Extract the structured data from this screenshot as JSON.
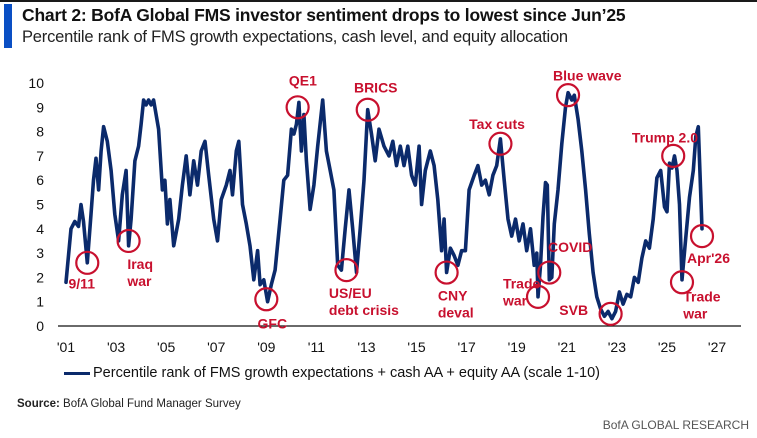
{
  "header": {
    "title": "Chart 2: BofA Global FMS investor sentiment drops to lowest since Jun’25",
    "subtitle": "Percentile rank of FMS growth expectations, cash level, and equity allocation"
  },
  "colors": {
    "accent": "#0a4fc4",
    "series": "#0b2a6b",
    "annotation": "#c8102e",
    "axis": "#111111"
  },
  "footer": {
    "source_label": "Source:",
    "source_text": " BofA Global Fund Manager Survey",
    "brand": "BofA GLOBAL RESEARCH"
  },
  "chart_data": {
    "type": "line",
    "title": "Chart 2: BofA Global FMS investor sentiment drops to lowest since Jun’25",
    "subtitle": "Percentile rank of FMS growth expectations, cash level, and equity allocation",
    "xlabel": "",
    "ylabel": "",
    "xlim": [
      2000.95,
      2027.95
    ],
    "ylim": [
      0,
      10
    ],
    "yticks": [
      0,
      1,
      2,
      3,
      4,
      5,
      6,
      7,
      8,
      9,
      10
    ],
    "xticks": [
      {
        "year": 2001,
        "label": "'01"
      },
      {
        "year": 2003,
        "label": "'03"
      },
      {
        "year": 2005,
        "label": "'05"
      },
      {
        "year": 2007,
        "label": "'07"
      },
      {
        "year": 2009,
        "label": "'09"
      },
      {
        "year": 2011,
        "label": "'11"
      },
      {
        "year": 2013,
        "label": "'13"
      },
      {
        "year": 2015,
        "label": "'15"
      },
      {
        "year": 2017,
        "label": "'17"
      },
      {
        "year": 2019,
        "label": "'19"
      },
      {
        "year": 2021,
        "label": "'21"
      },
      {
        "year": 2023,
        "label": "'23"
      },
      {
        "year": 2025,
        "label": "'25"
      },
      {
        "year": 2027,
        "label": "'27"
      }
    ],
    "grid": false,
    "legend": {
      "position": "bottom",
      "entries": [
        "Percentile rank of FMS growth expectations + cash AA + equity AA (scale 1-10)"
      ]
    },
    "series": [
      {
        "name": "Percentile rank of FMS growth expectations + cash AA + equity AA (scale 1-10)",
        "points": [
          [
            2001.0,
            1.8
          ],
          [
            2001.2,
            4.0
          ],
          [
            2001.35,
            4.3
          ],
          [
            2001.5,
            4.1
          ],
          [
            2001.6,
            5.0
          ],
          [
            2001.7,
            4.3
          ],
          [
            2001.85,
            2.6
          ],
          [
            2002.0,
            4.6
          ],
          [
            2002.1,
            6.0
          ],
          [
            2002.2,
            6.9
          ],
          [
            2002.3,
            5.6
          ],
          [
            2002.4,
            7.2
          ],
          [
            2002.5,
            8.2
          ],
          [
            2002.65,
            7.6
          ],
          [
            2002.8,
            6.4
          ],
          [
            2002.95,
            4.6
          ],
          [
            2003.1,
            3.5
          ],
          [
            2003.25,
            5.4
          ],
          [
            2003.4,
            6.4
          ],
          [
            2003.5,
            3.3
          ],
          [
            2003.6,
            4.4
          ],
          [
            2003.75,
            6.8
          ],
          [
            2003.9,
            7.4
          ],
          [
            2004.0,
            8.3
          ],
          [
            2004.1,
            9.3
          ],
          [
            2004.2,
            9.1
          ],
          [
            2004.3,
            9.3
          ],
          [
            2004.4,
            9.1
          ],
          [
            2004.5,
            9.3
          ],
          [
            2004.7,
            8.1
          ],
          [
            2004.85,
            5.6
          ],
          [
            2004.95,
            6.0
          ],
          [
            2005.05,
            4.2
          ],
          [
            2005.15,
            5.2
          ],
          [
            2005.3,
            3.3
          ],
          [
            2005.5,
            4.4
          ],
          [
            2005.65,
            5.8
          ],
          [
            2005.8,
            7.0
          ],
          [
            2005.95,
            5.4
          ],
          [
            2006.1,
            6.8
          ],
          [
            2006.25,
            5.8
          ],
          [
            2006.4,
            7.2
          ],
          [
            2006.55,
            7.6
          ],
          [
            2006.7,
            6.2
          ],
          [
            2006.9,
            4.4
          ],
          [
            2007.05,
            3.5
          ],
          [
            2007.2,
            5.2
          ],
          [
            2007.4,
            5.8
          ],
          [
            2007.55,
            6.4
          ],
          [
            2007.65,
            5.4
          ],
          [
            2007.8,
            7.2
          ],
          [
            2007.9,
            7.6
          ],
          [
            2008.05,
            5.0
          ],
          [
            2008.2,
            4.2
          ],
          [
            2008.35,
            3.3
          ],
          [
            2008.5,
            1.9
          ],
          [
            2008.65,
            3.1
          ],
          [
            2008.75,
            1.7
          ],
          [
            2008.9,
            1.9
          ],
          [
            2009.05,
            1.0
          ],
          [
            2009.2,
            1.7
          ],
          [
            2009.35,
            2.3
          ],
          [
            2009.55,
            4.4
          ],
          [
            2009.7,
            6.0
          ],
          [
            2009.85,
            6.2
          ],
          [
            2010.0,
            8.1
          ],
          [
            2010.1,
            7.9
          ],
          [
            2010.2,
            8.3
          ],
          [
            2010.3,
            9.2
          ],
          [
            2010.4,
            7.2
          ],
          [
            2010.5,
            8.7
          ],
          [
            2010.6,
            6.8
          ],
          [
            2010.75,
            4.8
          ],
          [
            2010.9,
            5.8
          ],
          [
            2011.05,
            7.4
          ],
          [
            2011.25,
            9.3
          ],
          [
            2011.4,
            7.2
          ],
          [
            2011.55,
            6.4
          ],
          [
            2011.7,
            5.6
          ],
          [
            2011.85,
            2.5
          ],
          [
            2012.0,
            2.3
          ],
          [
            2012.15,
            4.0
          ],
          [
            2012.3,
            5.6
          ],
          [
            2012.45,
            4.0
          ],
          [
            2012.6,
            2.2
          ],
          [
            2012.75,
            4.0
          ],
          [
            2012.9,
            6.0
          ],
          [
            2013.05,
            8.9
          ],
          [
            2013.2,
            7.9
          ],
          [
            2013.35,
            6.8
          ],
          [
            2013.5,
            8.1
          ],
          [
            2013.7,
            7.4
          ],
          [
            2013.9,
            7.0
          ],
          [
            2014.05,
            7.6
          ],
          [
            2014.2,
            6.6
          ],
          [
            2014.35,
            7.4
          ],
          [
            2014.5,
            6.6
          ],
          [
            2014.65,
            7.4
          ],
          [
            2014.8,
            6.2
          ],
          [
            2014.95,
            5.8
          ],
          [
            2015.1,
            7.4
          ],
          [
            2015.2,
            5.0
          ],
          [
            2015.35,
            6.4
          ],
          [
            2015.55,
            7.2
          ],
          [
            2015.7,
            6.6
          ],
          [
            2015.85,
            5.2
          ],
          [
            2016.0,
            3.1
          ],
          [
            2016.1,
            4.4
          ],
          [
            2016.2,
            2.2
          ],
          [
            2016.35,
            3.2
          ],
          [
            2016.5,
            2.9
          ],
          [
            2016.65,
            2.5
          ],
          [
            2016.8,
            3.1
          ],
          [
            2016.95,
            3.1
          ],
          [
            2017.1,
            5.6
          ],
          [
            2017.3,
            6.2
          ],
          [
            2017.45,
            6.6
          ],
          [
            2017.6,
            5.8
          ],
          [
            2017.75,
            6.0
          ],
          [
            2017.9,
            5.4
          ],
          [
            2018.05,
            6.2
          ],
          [
            2018.2,
            6.6
          ],
          [
            2018.35,
            7.7
          ],
          [
            2018.5,
            6.0
          ],
          [
            2018.65,
            4.4
          ],
          [
            2018.8,
            3.7
          ],
          [
            2018.95,
            4.4
          ],
          [
            2019.1,
            3.5
          ],
          [
            2019.25,
            4.2
          ],
          [
            2019.4,
            3.1
          ],
          [
            2019.55,
            4.0
          ],
          [
            2019.7,
            2.5
          ],
          [
            2019.8,
            3.0
          ],
          [
            2019.85,
            1.2
          ],
          [
            2019.95,
            2.5
          ],
          [
            2020.05,
            4.5
          ],
          [
            2020.15,
            5.9
          ],
          [
            2020.22,
            5.8
          ],
          [
            2020.3,
            1.9
          ],
          [
            2020.4,
            2.0
          ],
          [
            2020.5,
            4.2
          ],
          [
            2020.65,
            5.6
          ],
          [
            2020.8,
            7.5
          ],
          [
            2020.95,
            9.0
          ],
          [
            2021.05,
            9.6
          ],
          [
            2021.2,
            9.3
          ],
          [
            2021.3,
            9.5
          ],
          [
            2021.45,
            8.5
          ],
          [
            2021.6,
            7.2
          ],
          [
            2021.75,
            5.6
          ],
          [
            2021.9,
            3.8
          ],
          [
            2022.05,
            2.2
          ],
          [
            2022.2,
            1.2
          ],
          [
            2022.35,
            0.7
          ],
          [
            2022.5,
            0.4
          ],
          [
            2022.65,
            0.6
          ],
          [
            2022.8,
            0.3
          ],
          [
            2022.95,
            0.6
          ],
          [
            2023.1,
            1.4
          ],
          [
            2023.25,
            0.9
          ],
          [
            2023.4,
            1.3
          ],
          [
            2023.55,
            1.2
          ],
          [
            2023.7,
            2.0
          ],
          [
            2023.85,
            1.8
          ],
          [
            2024.0,
            2.8
          ],
          [
            2024.15,
            3.5
          ],
          [
            2024.3,
            3.2
          ],
          [
            2024.45,
            4.4
          ],
          [
            2024.6,
            6.1
          ],
          [
            2024.75,
            6.4
          ],
          [
            2024.9,
            4.9
          ],
          [
            2025.0,
            4.7
          ],
          [
            2025.1,
            6.7
          ],
          [
            2025.2,
            6.5
          ],
          [
            2025.3,
            7.0
          ],
          [
            2025.4,
            6.4
          ],
          [
            2025.5,
            5.0
          ],
          [
            2025.6,
            1.9
          ],
          [
            2025.75,
            3.6
          ],
          [
            2025.9,
            5.3
          ],
          [
            2026.05,
            6.4
          ],
          [
            2026.15,
            7.8
          ],
          [
            2026.25,
            8.2
          ],
          [
            2026.4,
            4.0
          ]
        ]
      }
    ],
    "annotations": [
      {
        "label": [
          "9/11"
        ],
        "circle": [
          2001.85,
          2.6
        ],
        "text_at": [
          2001.1,
          1.55
        ]
      },
      {
        "label": [
          "Iraq",
          "war"
        ],
        "circle": [
          2003.5,
          3.5
        ],
        "text_at": [
          2003.45,
          2.35
        ]
      },
      {
        "label": [
          "GFC"
        ],
        "circle": [
          2009.0,
          1.1
        ],
        "text_at": [
          2008.65,
          -0.1
        ]
      },
      {
        "label": [
          "QE1"
        ],
        "circle": [
          2010.25,
          9.0
        ],
        "text_at": [
          2009.9,
          9.9
        ]
      },
      {
        "label": [
          "US/EU",
          "debt crisis"
        ],
        "circle": [
          2012.2,
          2.3
        ],
        "text_at": [
          2011.5,
          1.15
        ]
      },
      {
        "label": [
          "BRICS"
        ],
        "circle": [
          2013.05,
          8.9
        ],
        "text_at": [
          2012.5,
          9.6
        ]
      },
      {
        "label": [
          "CNY",
          "deval"
        ],
        "circle": [
          2016.2,
          2.2
        ],
        "text_at": [
          2015.85,
          1.05
        ]
      },
      {
        "label": [
          "Tax cuts"
        ],
        "circle": [
          2018.35,
          7.5
        ],
        "text_at": [
          2017.1,
          8.1
        ]
      },
      {
        "label": [
          "Trade",
          "war"
        ],
        "circle": [
          2019.85,
          1.2
        ],
        "text_at": [
          2018.45,
          1.55
        ]
      },
      {
        "label": [
          "COVID"
        ],
        "circle": [
          2020.3,
          2.2
        ],
        "text_at": [
          2020.25,
          3.05
        ]
      },
      {
        "label": [
          "SVB"
        ],
        "circle": [
          2022.75,
          0.5
        ],
        "text_at": [
          2020.7,
          0.45
        ]
      },
      {
        "label": [
          "Blue wave"
        ],
        "circle": [
          2021.05,
          9.5
        ],
        "text_at": [
          2020.45,
          10.1
        ]
      },
      {
        "label": [
          "Trump 2.0"
        ],
        "circle": [
          2025.25,
          7.0
        ],
        "text_at": [
          2023.6,
          7.55
        ]
      },
      {
        "label": [
          "Apr'26"
        ],
        "circle": [
          2026.4,
          3.7
        ],
        "text_at": [
          2025.8,
          2.6
        ]
      },
      {
        "label": [
          "Trade",
          "war"
        ],
        "circle": [
          2025.6,
          1.8
        ],
        "text_at": [
          2025.65,
          1.0
        ]
      }
    ]
  }
}
